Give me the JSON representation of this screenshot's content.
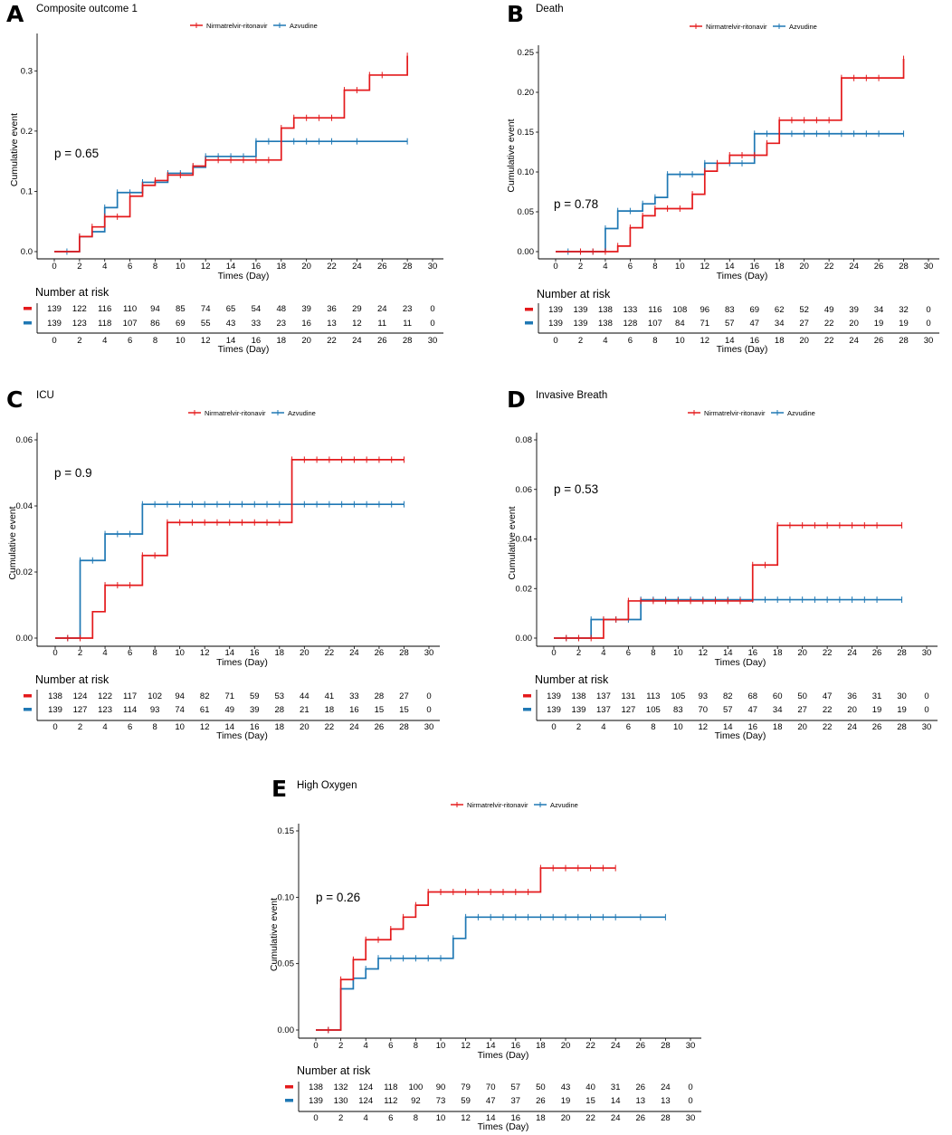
{
  "legend": {
    "labels": [
      "Nirmatrelvir-ritonavir",
      "Azvudine"
    ],
    "colors": [
      "#e41a1c",
      "#1f78b4"
    ]
  },
  "common": {
    "xlabel": "Times (Day)",
    "ylabel": "Cumulative event",
    "risk_title": "Number at risk",
    "x_ticks": [
      "0",
      "2",
      "4",
      "6",
      "8",
      "10",
      "12",
      "14",
      "16",
      "18",
      "20",
      "22",
      "24",
      "26",
      "28",
      "30"
    ]
  },
  "chart_data": [
    {
      "panel": "A",
      "title": "Composite outcome 1",
      "type": "line",
      "p_value": "p = 0.65",
      "xlim": [
        0,
        30
      ],
      "ylim": [
        0,
        0.35
      ],
      "y_ticks": [
        "0.0",
        "0.1",
        "0.2",
        "0.3"
      ],
      "y_tick_values": [
        0,
        0.1,
        0.2,
        0.3
      ],
      "series": [
        {
          "name": "Nirmatrelvir-ritonavir",
          "steps": [
            [
              0,
              0
            ],
            [
              2,
              0.025
            ],
            [
              3,
              0.041
            ],
            [
              4,
              0.058
            ],
            [
              6,
              0.092
            ],
            [
              7,
              0.11
            ],
            [
              8,
              0.118
            ],
            [
              9,
              0.127
            ],
            [
              11,
              0.142
            ],
            [
              12,
              0.152
            ],
            [
              18,
              0.205
            ],
            [
              19,
              0.222
            ],
            [
              23,
              0.268
            ],
            [
              25,
              0.293
            ],
            [
              28,
              0.325
            ]
          ],
          "end": 28,
          "censors": [
            2,
            3,
            4,
            5,
            6,
            7,
            8,
            9,
            10,
            11,
            12,
            13,
            14,
            15,
            16,
            17,
            18,
            19,
            20,
            21,
            22,
            23,
            24,
            25,
            26,
            28
          ]
        },
        {
          "name": "Azvudine",
          "steps": [
            [
              0,
              0
            ],
            [
              2,
              0.025
            ],
            [
              3,
              0.033
            ],
            [
              4,
              0.073
            ],
            [
              5,
              0.098
            ],
            [
              7,
              0.115
            ],
            [
              9,
              0.13
            ],
            [
              11,
              0.14
            ],
            [
              12,
              0.158
            ],
            [
              16,
              0.183
            ]
          ],
          "end": 28,
          "censors": [
            1,
            2,
            3,
            4,
            5,
            6,
            7,
            8,
            9,
            10,
            11,
            12,
            13,
            14,
            15,
            16,
            17,
            18,
            19,
            20,
            21,
            22,
            24,
            28
          ]
        }
      ],
      "at_risk": [
        [
          "139",
          "122",
          "116",
          "110",
          "94",
          "85",
          "74",
          "65",
          "54",
          "48",
          "39",
          "36",
          "29",
          "24",
          "23",
          "0"
        ],
        [
          "139",
          "123",
          "118",
          "107",
          "86",
          "69",
          "55",
          "43",
          "33",
          "23",
          "16",
          "13",
          "12",
          "11",
          "11",
          "0"
        ]
      ]
    },
    {
      "panel": "B",
      "title": "Death",
      "type": "line",
      "p_value": "p = 0.78",
      "xlim": [
        0,
        30
      ],
      "ylim": [
        0,
        0.25
      ],
      "y_ticks": [
        "0.00",
        "0.05",
        "0.10",
        "0.15",
        "0.20",
        "0.25"
      ],
      "y_tick_values": [
        0,
        0.05,
        0.1,
        0.15,
        0.2,
        0.25
      ],
      "series": [
        {
          "name": "Nirmatrelvir-ritonavir",
          "steps": [
            [
              0,
              0
            ],
            [
              5,
              0.007
            ],
            [
              6,
              0.03
            ],
            [
              7,
              0.045
            ],
            [
              8,
              0.054
            ],
            [
              11,
              0.072
            ],
            [
              12,
              0.101
            ],
            [
              13,
              0.111
            ],
            [
              14,
              0.121
            ],
            [
              17,
              0.136
            ],
            [
              18,
              0.165
            ],
            [
              23,
              0.218
            ],
            [
              28,
              0.242
            ]
          ],
          "end": 28,
          "censors": [
            2,
            3,
            4,
            5,
            6,
            7,
            8,
            9,
            10,
            11,
            12,
            13,
            14,
            15,
            16,
            17,
            18,
            19,
            20,
            21,
            22,
            23,
            24,
            25,
            26,
            28
          ]
        },
        {
          "name": "Azvudine",
          "steps": [
            [
              0,
              0
            ],
            [
              4,
              0.029
            ],
            [
              5,
              0.051
            ],
            [
              7,
              0.06
            ],
            [
              8,
              0.068
            ],
            [
              9,
              0.097
            ],
            [
              12,
              0.111
            ],
            [
              16,
              0.148
            ]
          ],
          "end": 28,
          "censors": [
            1,
            2,
            3,
            4,
            5,
            6,
            7,
            8,
            9,
            10,
            11,
            12,
            13,
            14,
            15,
            16,
            17,
            18,
            19,
            20,
            21,
            22,
            23,
            24,
            25,
            26,
            28
          ]
        }
      ],
      "at_risk": [
        [
          "139",
          "139",
          "138",
          "133",
          "116",
          "108",
          "96",
          "83",
          "69",
          "62",
          "52",
          "49",
          "39",
          "34",
          "32",
          "0"
        ],
        [
          "139",
          "139",
          "138",
          "128",
          "107",
          "84",
          "71",
          "57",
          "47",
          "34",
          "27",
          "22",
          "20",
          "19",
          "19",
          "0"
        ]
      ]
    },
    {
      "panel": "C",
      "title": "ICU",
      "type": "line",
      "p_value": "p = 0.9",
      "xlim": [
        0,
        30
      ],
      "ylim": [
        0,
        0.06
      ],
      "y_ticks": [
        "0.00",
        "0.02",
        "0.04",
        "0.06"
      ],
      "y_tick_values": [
        0,
        0.02,
        0.04,
        0.06
      ],
      "series": [
        {
          "name": "Nirmatrelvir-ritonavir",
          "steps": [
            [
              0,
              0
            ],
            [
              3,
              0.008
            ],
            [
              4,
              0.016
            ],
            [
              7,
              0.025
            ],
            [
              9,
              0.035
            ],
            [
              19,
              0.054
            ]
          ],
          "end": 28,
          "censors": [
            1,
            2,
            4,
            5,
            6,
            7,
            8,
            9,
            10,
            11,
            12,
            13,
            14,
            15,
            16,
            17,
            18,
            19,
            20,
            21,
            22,
            23,
            24,
            25,
            26,
            27,
            28
          ]
        },
        {
          "name": "Azvudine",
          "steps": [
            [
              0,
              0
            ],
            [
              2,
              0.0235
            ],
            [
              4,
              0.0315
            ],
            [
              7,
              0.0405
            ]
          ],
          "end": 28,
          "censors": [
            1,
            2,
            3,
            4,
            5,
            6,
            7,
            8,
            9,
            10,
            11,
            12,
            13,
            14,
            15,
            16,
            17,
            18,
            19,
            20,
            21,
            22,
            23,
            24,
            25,
            26,
            27,
            28
          ]
        }
      ],
      "at_risk": [
        [
          "138",
          "124",
          "122",
          "117",
          "102",
          "94",
          "82",
          "71",
          "59",
          "53",
          "44",
          "41",
          "33",
          "28",
          "27",
          "0"
        ],
        [
          "139",
          "127",
          "123",
          "114",
          "93",
          "74",
          "61",
          "49",
          "39",
          "28",
          "21",
          "18",
          "16",
          "15",
          "15",
          "0"
        ]
      ]
    },
    {
      "panel": "D",
      "title": "Invasive Breath",
      "type": "line",
      "p_value": "p = 0.53",
      "xlim": [
        0,
        30
      ],
      "ylim": [
        0,
        0.08
      ],
      "y_ticks": [
        "0.00",
        "0.02",
        "0.04",
        "0.06",
        "0.08"
      ],
      "y_tick_values": [
        0,
        0.02,
        0.04,
        0.06,
        0.08
      ],
      "series": [
        {
          "name": "Nirmatrelvir-ritonavir",
          "steps": [
            [
              0,
              0
            ],
            [
              4,
              0.0075
            ],
            [
              6,
              0.015
            ],
            [
              16,
              0.0295
            ],
            [
              18,
              0.0455
            ]
          ],
          "end": 28,
          "censors": [
            1,
            2,
            3,
            4,
            5,
            6,
            7,
            8,
            9,
            10,
            11,
            12,
            13,
            14,
            15,
            16,
            17,
            18,
            19,
            20,
            21,
            22,
            23,
            24,
            25,
            26,
            28
          ]
        },
        {
          "name": "Azvudine",
          "steps": [
            [
              0,
              0
            ],
            [
              3,
              0.0075
            ],
            [
              7,
              0.0155
            ]
          ],
          "end": 28,
          "censors": [
            1,
            2,
            3,
            4,
            5,
            6,
            7,
            8,
            9,
            10,
            11,
            12,
            13,
            14,
            15,
            16,
            17,
            18,
            19,
            20,
            21,
            22,
            23,
            24,
            25,
            26,
            28
          ]
        }
      ],
      "at_risk": [
        [
          "139",
          "138",
          "137",
          "131",
          "113",
          "105",
          "93",
          "82",
          "68",
          "60",
          "50",
          "47",
          "36",
          "31",
          "30",
          "0"
        ],
        [
          "139",
          "139",
          "137",
          "127",
          "105",
          "83",
          "70",
          "57",
          "47",
          "34",
          "27",
          "22",
          "20",
          "19",
          "19",
          "0"
        ]
      ]
    },
    {
      "panel": "E",
      "title": "High Oxygen",
      "type": "line",
      "p_value": "p = 0.26",
      "xlim": [
        0,
        30
      ],
      "ylim": [
        0,
        0.15
      ],
      "y_ticks": [
        "0.00",
        "0.05",
        "0.10",
        "0.15"
      ],
      "y_tick_values": [
        0,
        0.05,
        0.1,
        0.15
      ],
      "series": [
        {
          "name": "Nirmatrelvir-ritonavir",
          "steps": [
            [
              0,
              0
            ],
            [
              2,
              0.038
            ],
            [
              3,
              0.053
            ],
            [
              4,
              0.068
            ],
            [
              6,
              0.076
            ],
            [
              7,
              0.085
            ],
            [
              8,
              0.094
            ],
            [
              9,
              0.104
            ],
            [
              18,
              0.122
            ]
          ],
          "end": 24,
          "censors": [
            1,
            2,
            3,
            4,
            5,
            6,
            7,
            8,
            9,
            10,
            11,
            12,
            13,
            14,
            15,
            16,
            17,
            18,
            19,
            20,
            21,
            22,
            23,
            24
          ]
        },
        {
          "name": "Azvudine",
          "steps": [
            [
              0,
              0
            ],
            [
              2,
              0.031
            ],
            [
              3,
              0.039
            ],
            [
              4,
              0.046
            ],
            [
              5,
              0.054
            ],
            [
              11,
              0.069
            ],
            [
              12,
              0.085
            ]
          ],
          "end": 28,
          "censors": [
            1,
            2,
            3,
            4,
            5,
            6,
            7,
            8,
            9,
            10,
            11,
            12,
            13,
            14,
            15,
            16,
            17,
            18,
            19,
            20,
            21,
            22,
            23,
            24,
            26,
            28
          ]
        }
      ],
      "at_risk": [
        [
          "138",
          "132",
          "124",
          "118",
          "100",
          "90",
          "79",
          "70",
          "57",
          "50",
          "43",
          "40",
          "31",
          "26",
          "24",
          "0"
        ],
        [
          "139",
          "130",
          "124",
          "112",
          "92",
          "73",
          "59",
          "47",
          "37",
          "26",
          "19",
          "15",
          "14",
          "13",
          "13",
          "0"
        ]
      ]
    }
  ]
}
